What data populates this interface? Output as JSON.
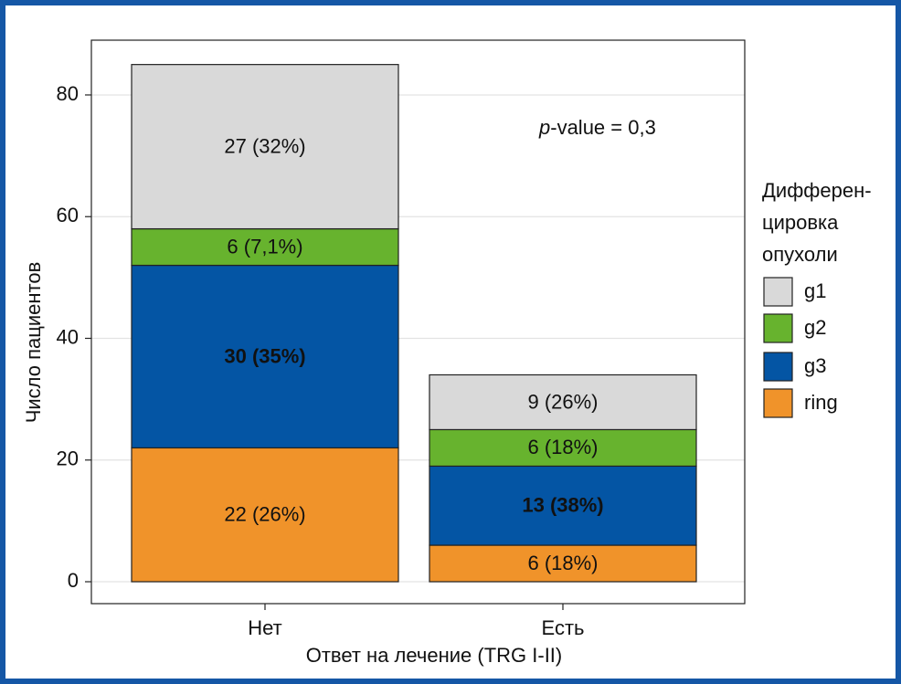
{
  "chart_data": {
    "type": "stacked_bar",
    "x_label": "Ответ на лечение (TRG I-II)",
    "y_label": "Число пациентов",
    "categories": [
      "Нет",
      "Есть"
    ],
    "series": [
      {
        "name": "g1",
        "color": "#d9d9d9",
        "label_color": "#111111",
        "values": [
          27,
          9
        ],
        "value_labels": [
          "27 (32%)",
          "9 (26%)"
        ]
      },
      {
        "name": "g2",
        "color": "#67b32e",
        "label_color": "#111111",
        "values": [
          6,
          6
        ],
        "value_labels": [
          "6 (7,1%)",
          "6 (18%)"
        ]
      },
      {
        "name": "g3",
        "color": "#0455a4",
        "label_color": "#ffffff",
        "values": [
          30,
          13
        ],
        "value_labels": [
          "30 (35%)",
          "13 (38%)"
        ]
      },
      {
        "name": "ring",
        "color": "#f0932a",
        "label_color": "#111111",
        "values": [
          22,
          6
        ],
        "value_labels": [
          "22 (26%)",
          "6 (18%)"
        ]
      }
    ],
    "legend_title": [
      "Дифферен-",
      "цировка",
      "опухоли"
    ],
    "annotation": [
      "p",
      "-value = 0,3"
    ],
    "ylim": [
      -3.6,
      89
    ],
    "yticks": [
      0,
      20,
      40,
      60,
      80
    ],
    "grid": true
  }
}
